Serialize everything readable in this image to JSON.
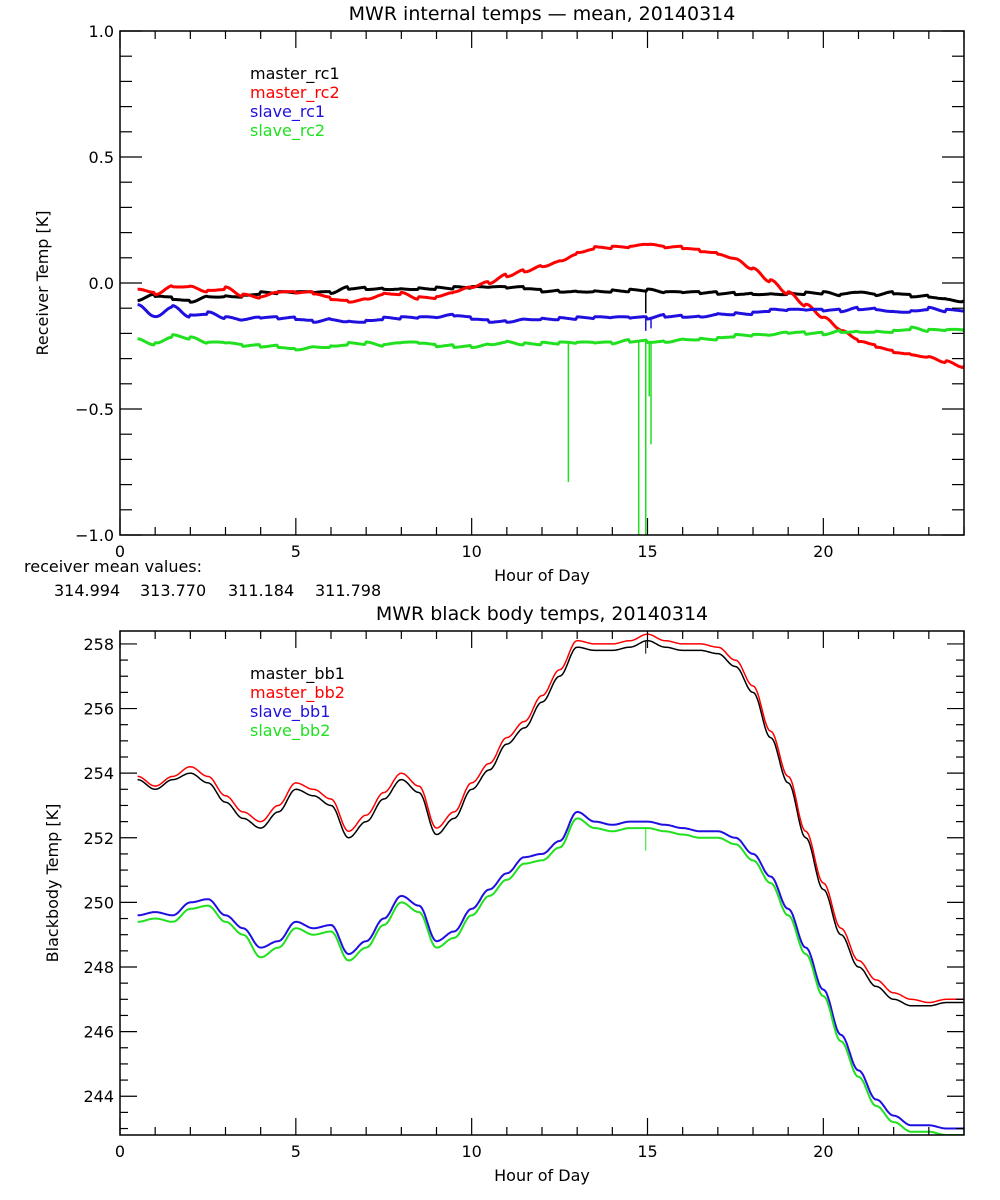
{
  "chart_data": [
    {
      "type": "line",
      "title": "MWR internal temps — mean, 20140314",
      "xlabel": "Hour of Day",
      "ylabel": "Receiver Temp [K]",
      "xlim": [
        0,
        24
      ],
      "ylim": [
        -1.0,
        1.0
      ],
      "xticks": [
        0,
        5,
        10,
        15,
        20
      ],
      "xtick_labels": [
        "0",
        "5",
        "10",
        "15",
        "20"
      ],
      "yticks": [
        -1.0,
        -0.5,
        0.0,
        0.5,
        1.0
      ],
      "ytick_labels": [
        "−1.0",
        "−0.5",
        "0.0",
        "0.5",
        "1.0"
      ],
      "grid": false,
      "legend": "upper-left (inside)",
      "x": [
        0.5,
        1.0,
        1.5,
        2.0,
        2.5,
        3.0,
        3.5,
        4.0,
        4.5,
        5.0,
        5.5,
        6.0,
        6.5,
        7.0,
        7.5,
        8.0,
        8.5,
        9.0,
        9.5,
        10.0,
        10.5,
        11.0,
        11.5,
        12.0,
        12.5,
        13.0,
        13.5,
        14.0,
        14.5,
        15.0,
        15.5,
        16.0,
        16.5,
        17.0,
        17.5,
        18.0,
        18.5,
        19.0,
        19.5,
        20.0,
        20.5,
        21.0,
        21.5,
        22.0,
        22.5,
        23.0,
        23.5,
        24.0
      ],
      "series": [
        {
          "name": "master_rc1",
          "color": "#000000",
          "values": [
            -0.07,
            -0.05,
            -0.06,
            -0.07,
            -0.05,
            -0.05,
            -0.05,
            -0.04,
            -0.04,
            -0.04,
            -0.04,
            -0.04,
            -0.02,
            -0.02,
            -0.02,
            -0.02,
            -0.02,
            -0.02,
            -0.02,
            -0.02,
            -0.02,
            -0.02,
            -0.02,
            -0.03,
            -0.03,
            -0.03,
            -0.03,
            -0.03,
            -0.03,
            -0.03,
            -0.04,
            -0.04,
            -0.04,
            -0.04,
            -0.04,
            -0.04,
            -0.04,
            -0.04,
            -0.04,
            -0.04,
            -0.05,
            -0.04,
            -0.05,
            -0.04,
            -0.05,
            -0.05,
            -0.06,
            -0.07
          ]
        },
        {
          "name": "master_rc2",
          "color": "#ff0000",
          "values": [
            -0.02,
            -0.04,
            -0.01,
            -0.01,
            -0.03,
            -0.02,
            -0.05,
            -0.06,
            -0.04,
            -0.04,
            -0.04,
            -0.06,
            -0.07,
            -0.06,
            -0.04,
            -0.04,
            -0.06,
            -0.06,
            -0.04,
            -0.02,
            0.0,
            0.03,
            0.05,
            0.07,
            0.09,
            0.12,
            0.14,
            0.14,
            0.14,
            0.15,
            0.14,
            0.14,
            0.13,
            0.12,
            0.1,
            0.06,
            0.01,
            -0.04,
            -0.09,
            -0.14,
            -0.19,
            -0.23,
            -0.25,
            -0.27,
            -0.28,
            -0.29,
            -0.31,
            -0.33
          ]
        },
        {
          "name": "slave_rc1",
          "color": "#2010e0",
          "values": [
            -0.08,
            -0.13,
            -0.09,
            -0.13,
            -0.12,
            -0.14,
            -0.15,
            -0.14,
            -0.14,
            -0.14,
            -0.15,
            -0.14,
            -0.15,
            -0.15,
            -0.14,
            -0.14,
            -0.14,
            -0.14,
            -0.13,
            -0.14,
            -0.15,
            -0.15,
            -0.14,
            -0.14,
            -0.14,
            -0.14,
            -0.14,
            -0.14,
            -0.14,
            -0.14,
            -0.13,
            -0.13,
            -0.13,
            -0.12,
            -0.12,
            -0.12,
            -0.11,
            -0.11,
            -0.11,
            -0.11,
            -0.11,
            -0.1,
            -0.1,
            -0.11,
            -0.11,
            -0.1,
            -0.11,
            -0.11
          ]
        },
        {
          "name": "slave_rc2",
          "color": "#20e020",
          "values": [
            -0.22,
            -0.24,
            -0.21,
            -0.22,
            -0.24,
            -0.24,
            -0.25,
            -0.25,
            -0.25,
            -0.26,
            -0.25,
            -0.25,
            -0.24,
            -0.24,
            -0.25,
            -0.24,
            -0.24,
            -0.25,
            -0.25,
            -0.25,
            -0.24,
            -0.23,
            -0.24,
            -0.24,
            -0.24,
            -0.24,
            -0.24,
            -0.24,
            -0.23,
            -0.23,
            -0.23,
            -0.22,
            -0.22,
            -0.22,
            -0.21,
            -0.21,
            -0.21,
            -0.2,
            -0.2,
            -0.2,
            -0.19,
            -0.19,
            -0.19,
            -0.19,
            -0.18,
            -0.19,
            -0.19,
            -0.19
          ]
        }
      ],
      "spikes": [
        {
          "series": "slave_rc2",
          "x": 12.75,
          "y": -0.79
        },
        {
          "series": "slave_rc2",
          "x": 14.75,
          "y": -1.0
        },
        {
          "series": "slave_rc2",
          "x": 14.95,
          "y": -1.0
        },
        {
          "series": "slave_rc2",
          "x": 15.05,
          "y": -0.45
        },
        {
          "series": "slave_rc2",
          "x": 15.1,
          "y": -0.64
        },
        {
          "series": "slave_rc1",
          "x": 14.95,
          "y": -0.19
        },
        {
          "series": "slave_rc1",
          "x": 15.1,
          "y": -0.18
        },
        {
          "series": "master_rc1",
          "x": 14.95,
          "y": -0.12
        }
      ],
      "annotations": {
        "mean_label": "receiver mean values:",
        "mean_values": [
          {
            "series": "master_rc1",
            "value": "314.994",
            "color": "#000000"
          },
          {
            "series": "master_rc2",
            "value": "313.770",
            "color": "#ff0000"
          },
          {
            "series": "slave_rc1",
            "value": "311.184",
            "color": "#2010e0"
          },
          {
            "series": "slave_rc2",
            "value": "311.798",
            "color": "#20e020"
          }
        ]
      }
    },
    {
      "type": "line",
      "title": "MWR black body temps, 20140314",
      "xlabel": "Hour of Day",
      "ylabel": "Blackbody Temp [K]",
      "xlim": [
        0,
        24
      ],
      "ylim": [
        242.8,
        258.4
      ],
      "xticks": [
        0,
        5,
        10,
        15,
        20
      ],
      "xtick_labels": [
        "0",
        "5",
        "10",
        "15",
        "20"
      ],
      "yticks": [
        244,
        246,
        248,
        250,
        252,
        254,
        256,
        258
      ],
      "ytick_labels": [
        "244",
        "246",
        "248",
        "250",
        "252",
        "254",
        "256",
        "258"
      ],
      "grid": false,
      "legend": "upper-left (inside)",
      "x": [
        0.5,
        1.0,
        1.5,
        2.0,
        2.5,
        3.0,
        3.5,
        4.0,
        4.5,
        5.0,
        5.5,
        6.0,
        6.5,
        7.0,
        7.5,
        8.0,
        8.5,
        9.0,
        9.5,
        10.0,
        10.5,
        11.0,
        11.5,
        12.0,
        12.5,
        13.0,
        13.5,
        14.0,
        14.5,
        15.0,
        15.5,
        16.0,
        16.5,
        17.0,
        17.5,
        18.0,
        18.5,
        19.0,
        19.5,
        20.0,
        20.5,
        21.0,
        21.5,
        22.0,
        22.5,
        23.0,
        23.5,
        24.0
      ],
      "series": [
        {
          "name": "master_bb1",
          "color": "#000000",
          "values": [
            253.8,
            253.5,
            253.8,
            254.0,
            253.7,
            253.1,
            252.6,
            252.3,
            252.8,
            253.5,
            253.3,
            253.0,
            252.0,
            252.5,
            253.2,
            253.8,
            253.4,
            252.1,
            252.6,
            253.5,
            254.1,
            254.9,
            255.4,
            256.2,
            257.0,
            257.9,
            257.8,
            257.8,
            257.9,
            258.1,
            257.9,
            257.8,
            257.8,
            257.7,
            257.3,
            256.5,
            255.1,
            253.7,
            252.0,
            250.4,
            249.0,
            248.0,
            247.4,
            247.0,
            246.8,
            246.8,
            246.9,
            246.9
          ]
        },
        {
          "name": "master_bb2",
          "color": "#ff0000",
          "values": [
            253.9,
            253.6,
            253.9,
            254.2,
            253.9,
            253.3,
            252.8,
            252.5,
            253.0,
            253.7,
            253.5,
            253.2,
            252.2,
            252.7,
            253.4,
            254.0,
            253.6,
            252.3,
            252.8,
            253.7,
            254.3,
            255.1,
            255.6,
            256.4,
            257.2,
            258.1,
            258.0,
            258.0,
            258.1,
            258.3,
            258.1,
            258.0,
            258.0,
            257.9,
            257.5,
            256.7,
            255.3,
            253.9,
            252.2,
            250.6,
            249.2,
            248.2,
            247.6,
            247.2,
            247.0,
            246.9,
            247.0,
            247.0
          ]
        },
        {
          "name": "slave_bb1",
          "color": "#2010e0",
          "values": [
            249.6,
            249.7,
            249.6,
            250.0,
            250.1,
            249.6,
            249.2,
            248.6,
            248.8,
            249.4,
            249.2,
            249.3,
            248.4,
            248.8,
            249.5,
            250.2,
            249.9,
            248.8,
            249.1,
            249.8,
            250.4,
            250.9,
            251.4,
            251.5,
            251.9,
            252.8,
            252.5,
            252.4,
            252.5,
            252.5,
            252.4,
            252.3,
            252.2,
            252.2,
            252.0,
            251.5,
            250.8,
            249.8,
            248.6,
            247.3,
            245.9,
            244.8,
            243.9,
            243.4,
            243.1,
            243.1,
            243.0,
            243.0
          ]
        },
        {
          "name": "slave_bb2",
          "color": "#20e020",
          "values": [
            249.4,
            249.5,
            249.4,
            249.8,
            249.9,
            249.4,
            249.0,
            248.3,
            248.6,
            249.2,
            249.0,
            249.1,
            248.2,
            248.6,
            249.3,
            250.0,
            249.7,
            248.6,
            248.9,
            249.6,
            250.2,
            250.7,
            251.2,
            251.3,
            251.7,
            252.6,
            252.3,
            252.2,
            252.3,
            252.3,
            252.2,
            252.1,
            252.0,
            252.0,
            251.8,
            251.3,
            250.6,
            249.6,
            248.4,
            247.1,
            245.7,
            244.6,
            243.7,
            243.2,
            242.9,
            242.9,
            242.8,
            242.8
          ]
        }
      ],
      "spikes": [
        {
          "series": "slave_bb2",
          "x": 14.95,
          "y": 251.6
        },
        {
          "series": "master_bb1",
          "x": 14.95,
          "y": 257.7
        }
      ]
    }
  ]
}
